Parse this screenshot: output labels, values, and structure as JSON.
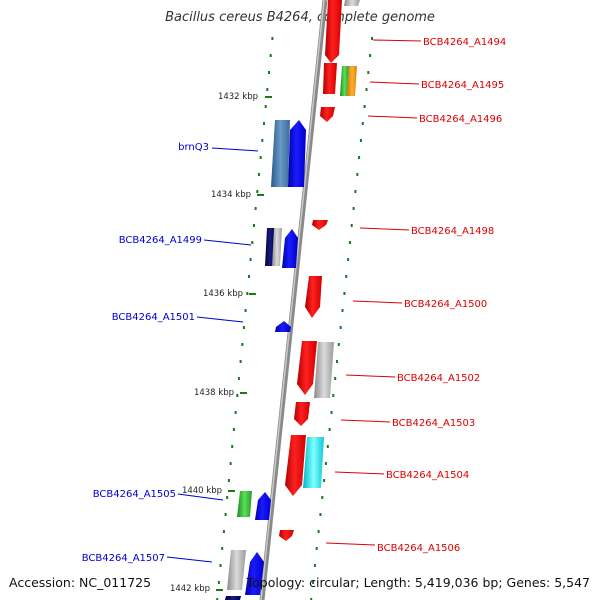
{
  "title": "Bacillus cereus B4264, complete genome",
  "footer": {
    "accession": "Accession: NC_011725",
    "topology": "Topology: circular; Length: 5,419,036 bp; Genes: 5,547"
  },
  "colors": {
    "forward_label": "#0000cc",
    "reverse_label": "#dd0000",
    "tick": "#1a7a1a",
    "backbone": "#8a8a8a"
  },
  "ticks": [
    "1432 kbp",
    "1434 kbp",
    "1436 kbp",
    "1438 kbp",
    "1440 kbp",
    "1442 kbp"
  ],
  "genes_reverse": [
    "BCB4264_A1494",
    "BCB4264_A1495",
    "BCB4264_A1496",
    "BCB4264_A1498",
    "BCB4264_A1500",
    "BCB4264_A1502",
    "BCB4264_A1503",
    "BCB4264_A1504",
    "BCB4264_A1506"
  ],
  "genes_forward": [
    "brnQ3",
    "BCB4264_A1499",
    "BCB4264_A1501",
    "BCB4264_A1505",
    "BCB4264_A1507"
  ]
}
